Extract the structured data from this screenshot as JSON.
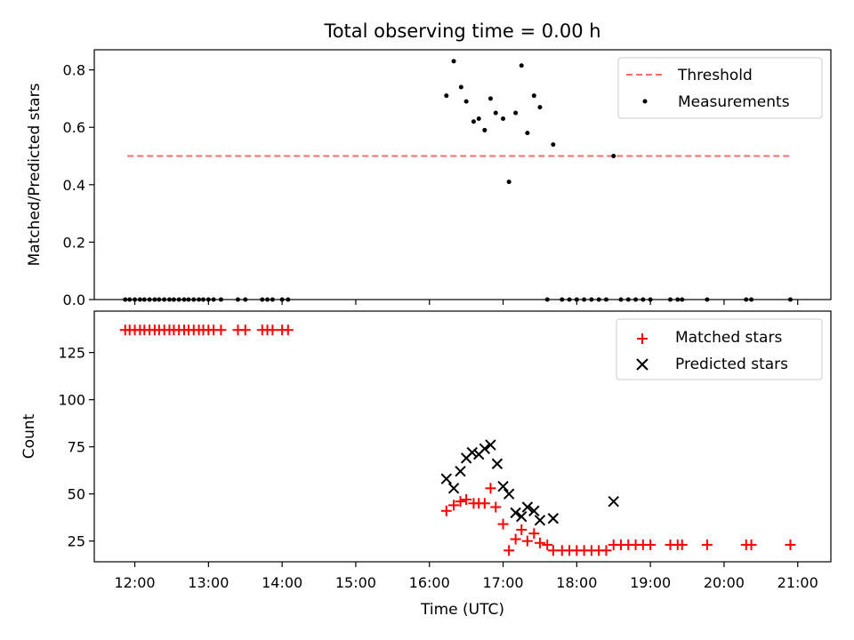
{
  "figure": {
    "title": "Total observing time = 0.00 h",
    "xlabel": "Time (UTC)",
    "x_ticks": [
      "12:00",
      "13:00",
      "14:00",
      "15:00",
      "16:00",
      "17:00",
      "18:00",
      "19:00",
      "20:00",
      "21:00"
    ]
  },
  "chart_data": [
    {
      "type": "scatter",
      "ylabel": "Matched/Predicted stars",
      "xlim": [
        11.45,
        21.45
      ],
      "ylim": [
        0,
        0.87
      ],
      "y_ticks": [
        "0.0",
        "0.2",
        "0.4",
        "0.6",
        "0.8"
      ],
      "legend_position": "top-right",
      "colors": {
        "threshold": "#ff6a6a",
        "measurements": "#000000"
      },
      "series": [
        {
          "name": "Threshold",
          "kind": "dashed-line",
          "x": [
            11.9,
            20.9
          ],
          "y": [
            0.5,
            0.5
          ]
        },
        {
          "name": "Measurements",
          "kind": "points",
          "x": [
            11.87,
            11.93,
            12.0,
            12.07,
            12.13,
            12.2,
            12.27,
            12.33,
            12.4,
            12.47,
            12.53,
            12.6,
            12.67,
            12.73,
            12.8,
            12.87,
            12.93,
            13.0,
            13.07,
            13.17,
            13.4,
            13.5,
            13.73,
            13.8,
            13.87,
            14.0,
            14.08,
            16.23,
            16.33,
            16.43,
            16.5,
            16.6,
            16.67,
            16.75,
            16.83,
            16.9,
            17.0,
            17.08,
            17.17,
            17.25,
            17.33,
            17.42,
            17.5,
            17.6,
            17.68,
            17.8,
            17.9,
            18.0,
            18.1,
            18.2,
            18.3,
            18.4,
            18.5,
            18.6,
            18.7,
            18.8,
            18.9,
            19.0,
            19.27,
            19.37,
            19.43,
            19.77,
            20.3,
            20.37,
            20.9
          ],
          "y": [
            0,
            0,
            0,
            0,
            0,
            0,
            0,
            0,
            0,
            0,
            0,
            0,
            0,
            0,
            0,
            0,
            0,
            0,
            0,
            0,
            0,
            0,
            0,
            0,
            0,
            0,
            0,
            0.71,
            0.83,
            0.74,
            0.69,
            0.62,
            0.63,
            0.59,
            0.7,
            0.65,
            0.63,
            0.41,
            0.65,
            0.815,
            0.58,
            0.71,
            0.67,
            0,
            0.54,
            0,
            0,
            0,
            0,
            0,
            0,
            0,
            0.5,
            0,
            0,
            0,
            0,
            0,
            0,
            0,
            0,
            0,
            0,
            0,
            0
          ]
        }
      ]
    },
    {
      "type": "scatter",
      "ylabel": "Count",
      "xlim": [
        11.45,
        21.45
      ],
      "ylim": [
        14,
        147
      ],
      "y_ticks": [
        "25",
        "50",
        "75",
        "100",
        "125"
      ],
      "legend_position": "top-right",
      "colors": {
        "matched": "#ff0000",
        "predicted": "#000000"
      },
      "series": [
        {
          "name": "Matched stars",
          "marker": "plus",
          "x": [
            11.87,
            11.93,
            12.0,
            12.07,
            12.13,
            12.2,
            12.27,
            12.33,
            12.4,
            12.47,
            12.53,
            12.6,
            12.67,
            12.73,
            12.8,
            12.87,
            12.93,
            13.0,
            13.07,
            13.17,
            13.4,
            13.5,
            13.73,
            13.8,
            13.87,
            14.0,
            14.08,
            16.23,
            16.33,
            16.42,
            16.5,
            16.6,
            16.67,
            16.75,
            16.83,
            16.9,
            17.0,
            17.08,
            17.17,
            17.25,
            17.33,
            17.42,
            17.5,
            17.6,
            17.68,
            17.8,
            17.9,
            18.0,
            18.1,
            18.2,
            18.3,
            18.4,
            18.5,
            18.6,
            18.7,
            18.8,
            18.9,
            19.0,
            19.27,
            19.37,
            19.43,
            19.77,
            20.3,
            20.37,
            20.9
          ],
          "y": [
            137,
            137,
            137,
            137,
            137,
            137,
            137,
            137,
            137,
            137,
            137,
            137,
            137,
            137,
            137,
            137,
            137,
            137,
            137,
            137,
            137,
            137,
            137,
            137,
            137,
            137,
            137,
            41,
            44,
            46,
            47,
            45,
            45,
            45,
            53,
            43,
            34,
            20,
            26,
            31,
            25,
            29,
            24,
            23,
            20,
            20,
            20,
            20,
            20,
            20,
            20,
            20,
            23,
            23,
            23,
            23,
            23,
            23,
            23,
            23,
            23,
            23,
            23,
            23,
            23
          ]
        },
        {
          "name": "Predicted stars",
          "marker": "x",
          "x": [
            16.23,
            16.33,
            16.42,
            16.5,
            16.58,
            16.67,
            16.75,
            16.83,
            16.92,
            17.0,
            17.08,
            17.17,
            17.25,
            17.33,
            17.42,
            17.5,
            17.68,
            18.5
          ],
          "y": [
            58,
            53,
            62,
            69,
            72,
            71,
            74,
            76,
            66,
            54,
            50,
            40,
            38,
            43,
            41,
            36,
            37,
            46
          ]
        }
      ]
    }
  ]
}
